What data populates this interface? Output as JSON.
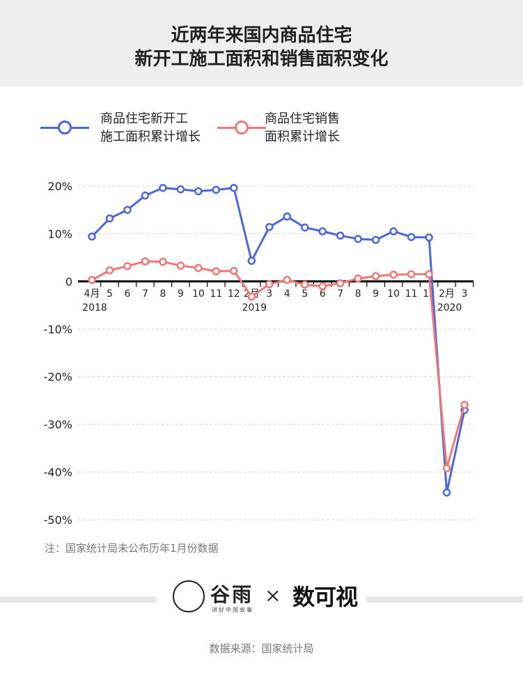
{
  "title_line1": "近两年来国内商品住宅",
  "title_line2": "新开工施工面积和销售面积变化",
  "legend": [
    {
      "line1": "商品住宅新开工",
      "line2": "施工面积累计增长",
      "color": "#4a66d8"
    },
    {
      "line1": "商品住宅销售",
      "line2": "面积累计增长",
      "color": "#ef7777"
    }
  ],
  "chart_data": {
    "type": "line",
    "x": [
      "2018-04",
      "2018-05",
      "2018-06",
      "2018-07",
      "2018-08",
      "2018-09",
      "2018-10",
      "2018-11",
      "2018-12",
      "2019-02",
      "2019-03",
      "2019-04",
      "2019-05",
      "2019-06",
      "2019-07",
      "2019-08",
      "2019-09",
      "2019-10",
      "2019-11",
      "2019-12",
      "2020-02",
      "2020-03"
    ],
    "tick_labels": [
      "4月",
      "5",
      "6",
      "7",
      "8",
      "9",
      "10",
      "11",
      "12",
      "2月",
      "3",
      "4",
      "5",
      "6",
      "7",
      "8",
      "9",
      "10",
      "11",
      "12",
      "2月",
      "3"
    ],
    "year_labels": [
      {
        "year": "2018",
        "at_index": 0
      },
      {
        "year": "2019",
        "at_index": 9
      },
      {
        "year": "2020",
        "at_index": 20
      }
    ],
    "y_ticks": [
      "20%",
      "10%",
      "0",
      "-10%",
      "-20%",
      "-30%",
      "-40%",
      "-50%"
    ],
    "y_tick_values": [
      20,
      10,
      0,
      -10,
      -20,
      -30,
      -40,
      -50
    ],
    "ylim": [
      -50,
      20
    ],
    "grid": true,
    "series": [
      {
        "name": "商品住宅新开工施工面积累计增长",
        "color": "#4a66d8",
        "values": [
          9.4,
          13.2,
          15.0,
          18.0,
          19.6,
          19.3,
          18.9,
          19.2,
          19.6,
          4.3,
          11.4,
          13.6,
          11.3,
          10.5,
          9.6,
          8.9,
          8.7,
          10.5,
          9.3,
          9.2,
          -44.3,
          -27.0
        ]
      },
      {
        "name": "商品住宅销售面积累计增长",
        "color": "#ef7777",
        "values": [
          0.3,
          2.3,
          3.2,
          4.2,
          4.1,
          3.3,
          2.8,
          2.1,
          2.2,
          -3.2,
          -0.6,
          0.3,
          -0.7,
          -1.0,
          -0.4,
          0.6,
          1.1,
          1.4,
          1.5,
          1.5,
          -39.2,
          -25.9
        ]
      }
    ]
  },
  "note": "注：国家统计局未公布历年1月份数据",
  "logo": {
    "brand1": "谷雨",
    "brand1_sub": "讲好中国故事",
    "separator": "×",
    "brand2": "数可视"
  },
  "source": "数据来源：国家统计局"
}
